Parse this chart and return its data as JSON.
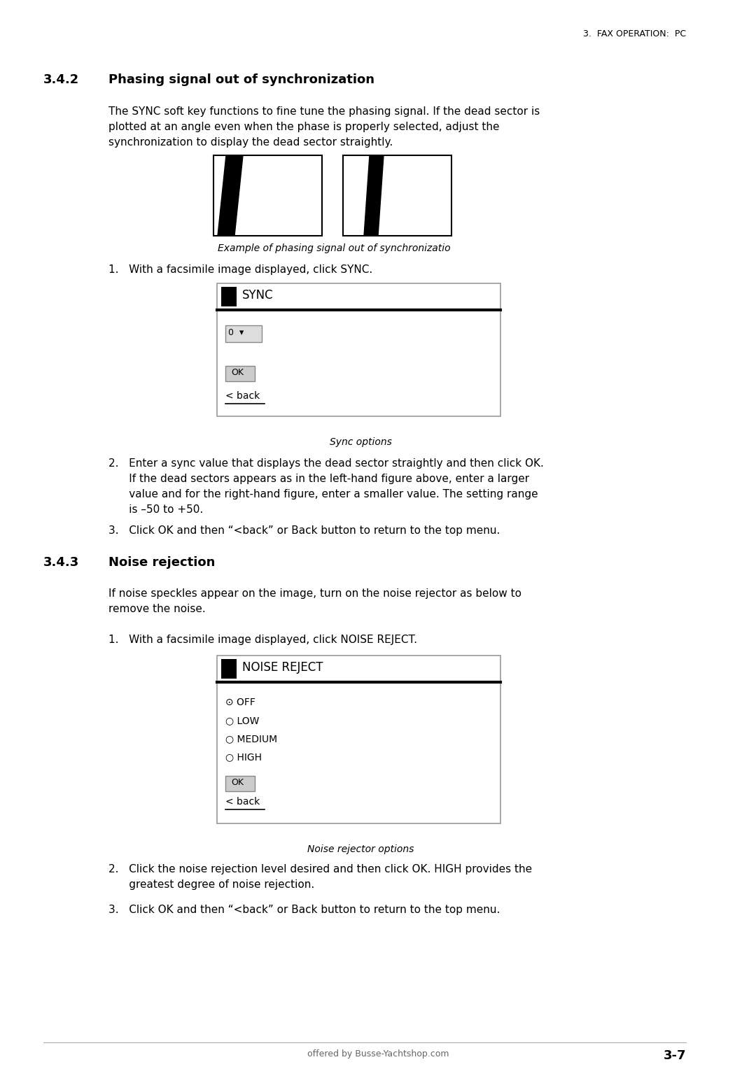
{
  "bg_color": "#ffffff",
  "page_width": 10.8,
  "page_height": 15.28,
  "header_text": "3.  FAX OPERATION:  PC",
  "footer_text": "offered by Busse-Yachtshop.com",
  "page_num": "3-7",
  "section_342_num": "3.4.2",
  "section_342_title": "Phasing signal out of synchronization",
  "section_342_body_1": "The SYNC soft key functions to fine tune the phasing signal. If the dead sector is",
  "section_342_body_2": "plotted at an angle even when the phase is properly selected, adjust the",
  "section_342_body_3": "synchronization to display the dead sector straightly.",
  "fig_caption_342": "Example of phasing signal out of synchronizatio",
  "step1_342": "1.   With a facsimile image displayed, click SYNC.",
  "sync_title": "SYNC",
  "sync_caption": "Sync options",
  "step2_342_1": "2.   Enter a sync value that displays the dead sector straightly and then click OK.",
  "step2_342_2": "      If the dead sectors appears as in the left-hand figure above, enter a larger",
  "step2_342_3": "      value and for the right-hand figure, enter a smaller value. The setting range",
  "step2_342_4": "      is –50 to +50.",
  "step3_342": "3.   Click OK and then “<back” or Back button to return to the top menu.",
  "section_343_num": "3.4.3",
  "section_343_title": "Noise rejection",
  "section_343_body_1": "If noise speckles appear on the image, turn on the noise rejector as below to",
  "section_343_body_2": "remove the noise.",
  "step1_343": "1.   With a facsimile image displayed, click NOISE REJECT.",
  "noise_title": "NOISE REJECT",
  "noise_caption": "Noise rejector options",
  "noise_options": [
    "⊙ OFF",
    "○ LOW",
    "○ MEDIUM",
    "○ HIGH"
  ],
  "step2_343_1": "2.   Click the noise rejection level desired and then click OK. HIGH provides the",
  "step2_343_2": "      greatest degree of noise rejection.",
  "step3_343": "3.   Click OK and then “<back” or Back button to return to the top menu."
}
